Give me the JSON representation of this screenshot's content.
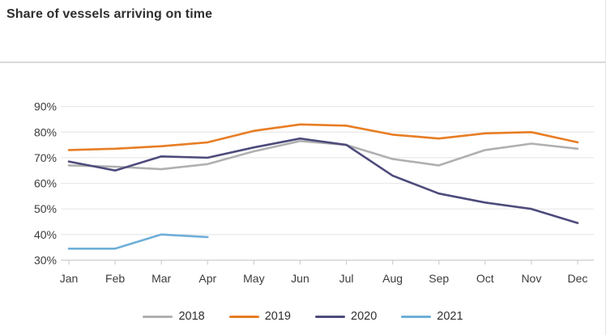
{
  "header": {
    "title": "Share of vessels arriving on time"
  },
  "chart_data": {
    "type": "line",
    "title": "Share of vessels arriving on time",
    "categories": [
      "Jan",
      "Feb",
      "Mar",
      "Apr",
      "May",
      "Jun",
      "Jul",
      "Aug",
      "Sep",
      "Oct",
      "Nov",
      "Dec"
    ],
    "xlabel": "",
    "ylabel": "",
    "ylim": [
      30,
      95
    ],
    "y_tick_values": [
      90,
      80,
      70,
      60,
      50,
      40,
      30
    ],
    "y_tick_suffix": "%",
    "grid": true,
    "legend_position": "bottom",
    "series": [
      {
        "name": "2018",
        "color": "#b0b0b0",
        "values": [
          67,
          66.5,
          65.5,
          67.5,
          72.5,
          76.5,
          75,
          69.5,
          67,
          73,
          75.5,
          73.5
        ]
      },
      {
        "name": "2019",
        "color": "#e87d24",
        "values": [
          73,
          73.5,
          74.5,
          76,
          80.5,
          83,
          82.5,
          79,
          77.5,
          79.5,
          80,
          76
        ]
      },
      {
        "name": "2020",
        "color": "#4e4b7c",
        "values": [
          68.5,
          65,
          70.5,
          70,
          74,
          77.5,
          75,
          63,
          56,
          52.5,
          50,
          44.5
        ]
      },
      {
        "name": "2021",
        "color": "#6fafd8",
        "values": [
          34.5,
          34.5,
          40,
          39,
          null,
          null,
          null,
          null,
          null,
          null,
          null,
          null
        ]
      }
    ],
    "style": {
      "gridline_color": "#e8e8e8",
      "axis_color": "#cfcfcf",
      "label_color": "#3c3c3c",
      "line_width": 2.6
    }
  }
}
